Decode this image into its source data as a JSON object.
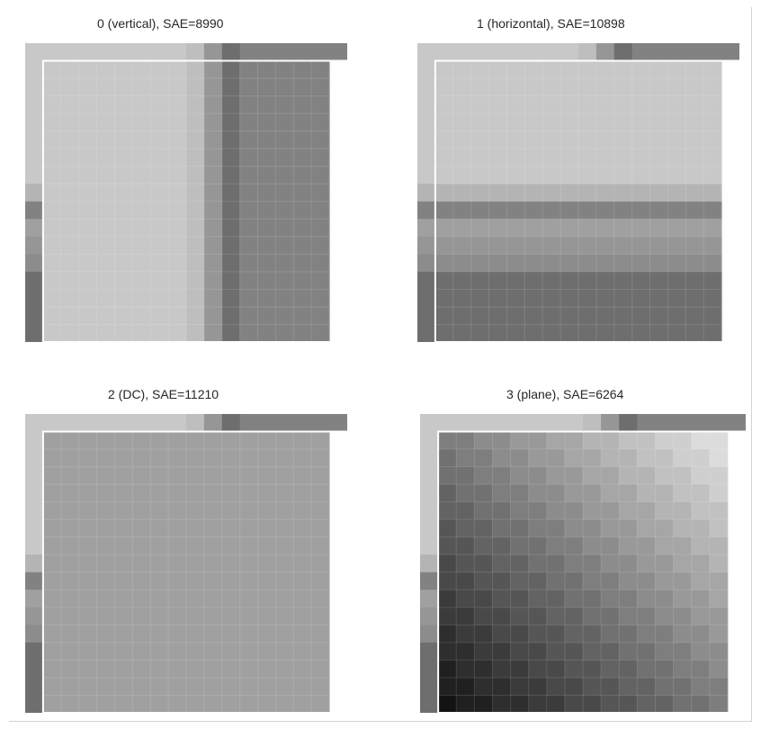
{
  "figure": {
    "panels": [
      {
        "title": "0 (vertical), SAE=8990",
        "mode": "vertical",
        "sae": 8990,
        "top_neighbors": [
          200,
          200,
          200,
          200,
          200,
          200,
          200,
          200,
          200,
          190,
          150,
          110,
          130,
          130,
          130,
          130,
          130,
          130
        ],
        "left_neighbors": [
          200,
          200,
          200,
          200,
          200,
          200,
          200,
          200,
          180,
          130,
          160,
          150,
          140,
          110,
          110,
          110,
          110
        ]
      },
      {
        "title": "1 (horizontal), SAE=10898",
        "mode": "horizontal",
        "sae": 10898,
        "top_neighbors": [
          200,
          200,
          200,
          200,
          200,
          200,
          200,
          200,
          200,
          190,
          150,
          110,
          130,
          130,
          130,
          130,
          130,
          130
        ],
        "left_neighbors": [
          200,
          200,
          200,
          200,
          200,
          200,
          200,
          200,
          180,
          130,
          160,
          150,
          140,
          110,
          110,
          110,
          110
        ]
      },
      {
        "title": "2 (DC), SAE=11210",
        "mode": "dc",
        "sae": 11210,
        "dc_value": 160,
        "top_neighbors": [
          200,
          200,
          200,
          200,
          200,
          200,
          200,
          200,
          200,
          190,
          150,
          110,
          130,
          130,
          130,
          130,
          130,
          130
        ],
        "left_neighbors": [
          200,
          200,
          200,
          200,
          200,
          200,
          200,
          200,
          180,
          130,
          160,
          150,
          140,
          110,
          110,
          110,
          110
        ]
      },
      {
        "title": "3 (plane), SAE=6264",
        "mode": "plane",
        "sae": 6264,
        "plane_start": 220,
        "plane_step": 6.7,
        "top_neighbors": [
          200,
          200,
          200,
          200,
          200,
          200,
          200,
          200,
          200,
          190,
          150,
          110,
          130,
          130,
          130,
          130,
          130,
          130
        ],
        "left_neighbors": [
          200,
          200,
          200,
          200,
          200,
          200,
          200,
          200,
          180,
          130,
          160,
          150,
          140,
          110,
          110,
          110,
          110
        ]
      }
    ]
  }
}
